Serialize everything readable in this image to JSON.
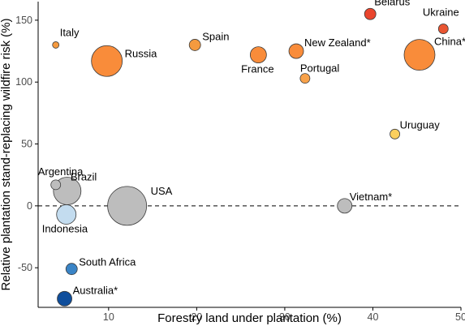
{
  "chart_data": {
    "type": "scatter",
    "xlabel": "Forestry land under plantation (%)",
    "ylabel": "Relative plantation stand-replacing wildfire risk (%)",
    "xlim": [
      2,
      50
    ],
    "ylim": [
      -82,
      165
    ],
    "xticks": [
      10,
      20,
      30,
      40,
      50
    ],
    "yticks": [
      -50,
      0,
      50,
      100,
      150
    ],
    "reference_line": {
      "y": 0,
      "style": "dashed"
    },
    "grid": false,
    "encoding": {
      "color": "relative risk",
      "size": "bubble area"
    },
    "points": [
      {
        "label": "Italy",
        "x": 4.0,
        "y": 130,
        "color": "#f59a3f"
      },
      {
        "label": "Russia",
        "x": 9.8,
        "y": 117,
        "color": "#f98c3a"
      },
      {
        "label": "Spain",
        "x": 19.8,
        "y": 130,
        "color": "#f59a3f"
      },
      {
        "label": "France",
        "x": 27.0,
        "y": 122,
        "color": "#f98c3a"
      },
      {
        "label": "New Zealand*",
        "x": 31.3,
        "y": 125,
        "color": "#f98c3a"
      },
      {
        "label": "Portugal",
        "x": 32.3,
        "y": 103,
        "color": "#f8a24a"
      },
      {
        "label": "Belarus",
        "x": 39.7,
        "y": 155,
        "color": "#e9452d"
      },
      {
        "label": "Ukraine",
        "x": 48.0,
        "y": 143,
        "color": "#e95532"
      },
      {
        "label": "China*",
        "x": 45.3,
        "y": 122,
        "color": "#f98c3a"
      },
      {
        "label": "Uruguay",
        "x": 42.5,
        "y": 58,
        "color": "#fbcf5e"
      },
      {
        "label": "Argentina",
        "x": 4.0,
        "y": 17,
        "color": "#bdbdbd"
      },
      {
        "label": "Brazil",
        "x": 5.3,
        "y": 12,
        "color": "#bdbdbd"
      },
      {
        "label": "USA",
        "x": 12.1,
        "y": 0,
        "color": "#bdbdbd"
      },
      {
        "label": "Indonesia",
        "x": 5.2,
        "y": -7,
        "color": "#c3dcef"
      },
      {
        "label": "Vietnam*",
        "x": 36.8,
        "y": 0,
        "color": "#bdbdbd"
      },
      {
        "label": "South Africa",
        "x": 5.8,
        "y": -51,
        "color": "#3a84c6"
      },
      {
        "label": "Australia*",
        "x": 5.0,
        "y": -75,
        "color": "#0f4e9c"
      }
    ]
  }
}
